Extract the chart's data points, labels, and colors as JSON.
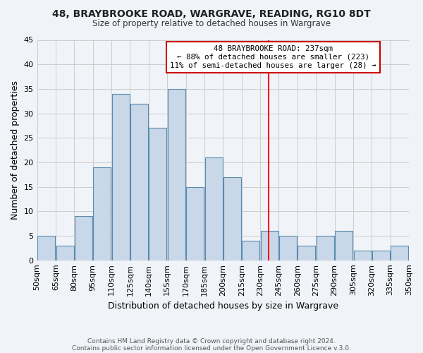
{
  "title": "48, BRAYBROOKE ROAD, WARGRAVE, READING, RG10 8DT",
  "subtitle": "Size of property relative to detached houses in Wargrave",
  "xlabel": "Distribution of detached houses by size in Wargrave",
  "ylabel": "Number of detached properties",
  "footer_lines": [
    "Contains HM Land Registry data © Crown copyright and database right 2024.",
    "Contains public sector information licensed under the Open Government Licence v.3.0."
  ],
  "bin_labels": [
    "50sqm",
    "65sqm",
    "80sqm",
    "95sqm",
    "110sqm",
    "125sqm",
    "140sqm",
    "155sqm",
    "170sqm",
    "185sqm",
    "200sqm",
    "215sqm",
    "230sqm",
    "245sqm",
    "260sqm",
    "275sqm",
    "290sqm",
    "305sqm",
    "320sqm",
    "335sqm",
    "350sqm"
  ],
  "bin_edges": [
    50,
    65,
    80,
    95,
    110,
    125,
    140,
    155,
    170,
    185,
    200,
    215,
    230,
    245,
    260,
    275,
    290,
    305,
    320,
    335,
    350
  ],
  "bar_heights": [
    5,
    3,
    9,
    19,
    34,
    32,
    27,
    35,
    15,
    21,
    17,
    4,
    6,
    5,
    3,
    5,
    6,
    2,
    2,
    3
  ],
  "bar_color": "#c8d8e8",
  "bar_edge_color": "#5a8ab0",
  "property_line_x": 237,
  "property_line_color": "red",
  "ylim": [
    0,
    45
  ],
  "yticks": [
    0,
    5,
    10,
    15,
    20,
    25,
    30,
    35,
    40,
    45
  ],
  "annotation_title": "48 BRAYBROOKE ROAD: 237sqm",
  "annotation_line1": "← 88% of detached houses are smaller (223)",
  "annotation_line2": "11% of semi-detached houses are larger (28) →",
  "annotation_box_color": "#ffffff",
  "annotation_box_edge": "#cc0000",
  "grid_color": "#cccccc",
  "background_color": "#f0f4f8"
}
